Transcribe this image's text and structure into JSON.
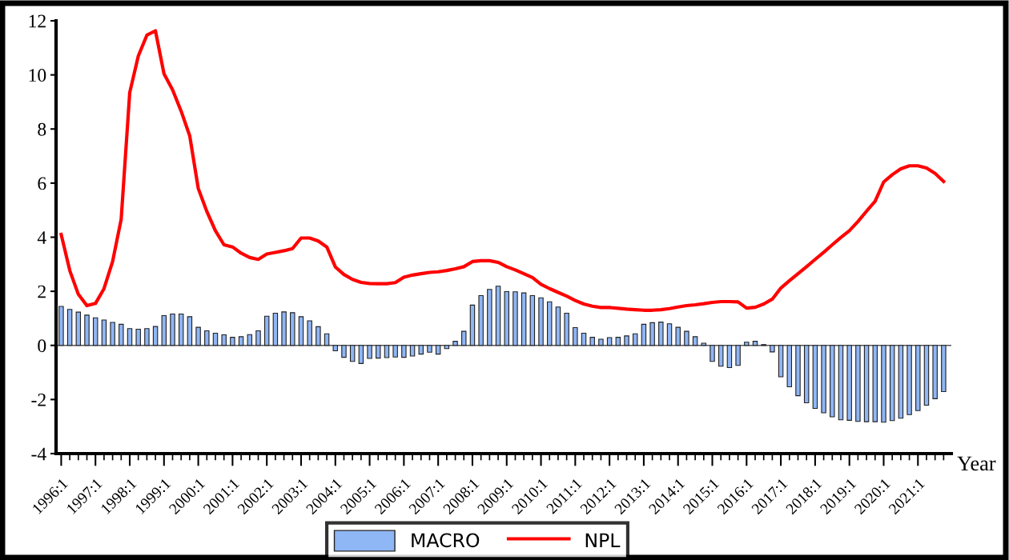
{
  "chart_data": {
    "type": "bar",
    "xlabel": "Year",
    "categories": [
      "1996:1",
      null,
      null,
      null,
      "1997:1",
      null,
      null,
      null,
      "1998:1",
      null,
      null,
      null,
      "1999:1",
      null,
      null,
      null,
      "2000:1",
      null,
      null,
      null,
      "2001:1",
      null,
      null,
      null,
      "2002:1",
      null,
      null,
      null,
      "2003:1",
      null,
      null,
      null,
      "2004:1",
      null,
      null,
      null,
      "2005:1",
      null,
      null,
      null,
      "2006:1",
      null,
      null,
      null,
      "2007:1",
      null,
      null,
      null,
      "2008:1",
      null,
      null,
      null,
      "2009:1",
      null,
      null,
      null,
      "2010:1",
      null,
      null,
      null,
      "2011:1",
      null,
      null,
      null,
      "2012:1",
      null,
      null,
      null,
      "2013:1",
      null,
      null,
      null,
      "2014:1",
      null,
      null,
      null,
      "2015:1",
      null,
      null,
      null,
      "2016:1",
      null,
      null,
      null,
      "2017:1",
      null,
      null,
      null,
      "2018:1",
      null,
      null,
      null,
      "2019:1",
      null,
      null,
      null,
      "2020:1",
      null,
      null,
      null,
      "2021:1",
      null,
      null,
      null
    ],
    "series": [
      {
        "name": "MACRO",
        "color": "#8fb6f5",
        "values": [
          1.44,
          1.33,
          1.23,
          1.12,
          1.02,
          0.94,
          0.85,
          0.78,
          0.62,
          0.6,
          0.62,
          0.7,
          1.1,
          1.16,
          1.16,
          1.06,
          0.67,
          0.54,
          0.45,
          0.39,
          0.3,
          0.32,
          0.4,
          0.54,
          1.08,
          1.19,
          1.24,
          1.21,
          1.06,
          0.91,
          0.69,
          0.43,
          -0.2,
          -0.44,
          -0.59,
          -0.67,
          -0.48,
          -0.47,
          -0.45,
          -0.43,
          -0.44,
          -0.39,
          -0.32,
          -0.25,
          -0.32,
          -0.12,
          0.15,
          0.52,
          1.49,
          1.84,
          2.07,
          2.19,
          1.99,
          1.98,
          1.94,
          1.84,
          1.76,
          1.61,
          1.42,
          1.19,
          0.66,
          0.45,
          0.3,
          0.23,
          0.29,
          0.3,
          0.35,
          0.43,
          0.78,
          0.84,
          0.86,
          0.8,
          0.67,
          0.52,
          0.32,
          0.08,
          -0.59,
          -0.77,
          -0.82,
          -0.74,
          0.12,
          0.15,
          0.03,
          -0.24,
          -1.16,
          -1.53,
          -1.86,
          -2.12,
          -2.33,
          -2.49,
          -2.64,
          -2.75,
          -2.77,
          -2.81,
          -2.82,
          -2.82,
          -2.84,
          -2.78,
          -2.69,
          -2.56,
          -2.41,
          -2.21,
          -1.97,
          -1.71
        ]
      },
      {
        "name": "NPL",
        "type": "line",
        "color": "#ff0000",
        "values": [
          4.1,
          2.77,
          1.89,
          1.47,
          1.55,
          2.1,
          3.1,
          4.66,
          9.35,
          10.7,
          11.47,
          11.63,
          10.04,
          9.45,
          8.66,
          7.75,
          5.8,
          4.95,
          4.24,
          3.72,
          3.64,
          3.41,
          3.25,
          3.18,
          3.38,
          3.44,
          3.5,
          3.58,
          3.97,
          3.97,
          3.86,
          3.64,
          2.9,
          2.62,
          2.44,
          2.33,
          2.29,
          2.28,
          2.28,
          2.32,
          2.52,
          2.6,
          2.65,
          2.7,
          2.72,
          2.77,
          2.83,
          2.91,
          3.1,
          3.13,
          3.13,
          3.07,
          2.91,
          2.79,
          2.65,
          2.51,
          2.26,
          2.1,
          1.96,
          1.82,
          1.66,
          1.53,
          1.45,
          1.4,
          1.4,
          1.37,
          1.34,
          1.32,
          1.3,
          1.3,
          1.32,
          1.36,
          1.42,
          1.47,
          1.5,
          1.54,
          1.59,
          1.62,
          1.62,
          1.61,
          1.38,
          1.41,
          1.53,
          1.71,
          2.12,
          2.39,
          2.65,
          2.91,
          3.18,
          3.44,
          3.72,
          3.99,
          4.24,
          4.58,
          4.96,
          5.33,
          6.04,
          6.31,
          6.53,
          6.64,
          6.64,
          6.56,
          6.36,
          6.06
        ]
      }
    ],
    "ylim": [
      -4,
      12
    ],
    "yticks": [
      -4,
      -2,
      0,
      2,
      4,
      6,
      8,
      10,
      12
    ],
    "ref_lines": [
      {
        "axis": "y",
        "value": 0,
        "color": "#555555"
      }
    ],
    "grid": false,
    "legend": "bottom"
  }
}
